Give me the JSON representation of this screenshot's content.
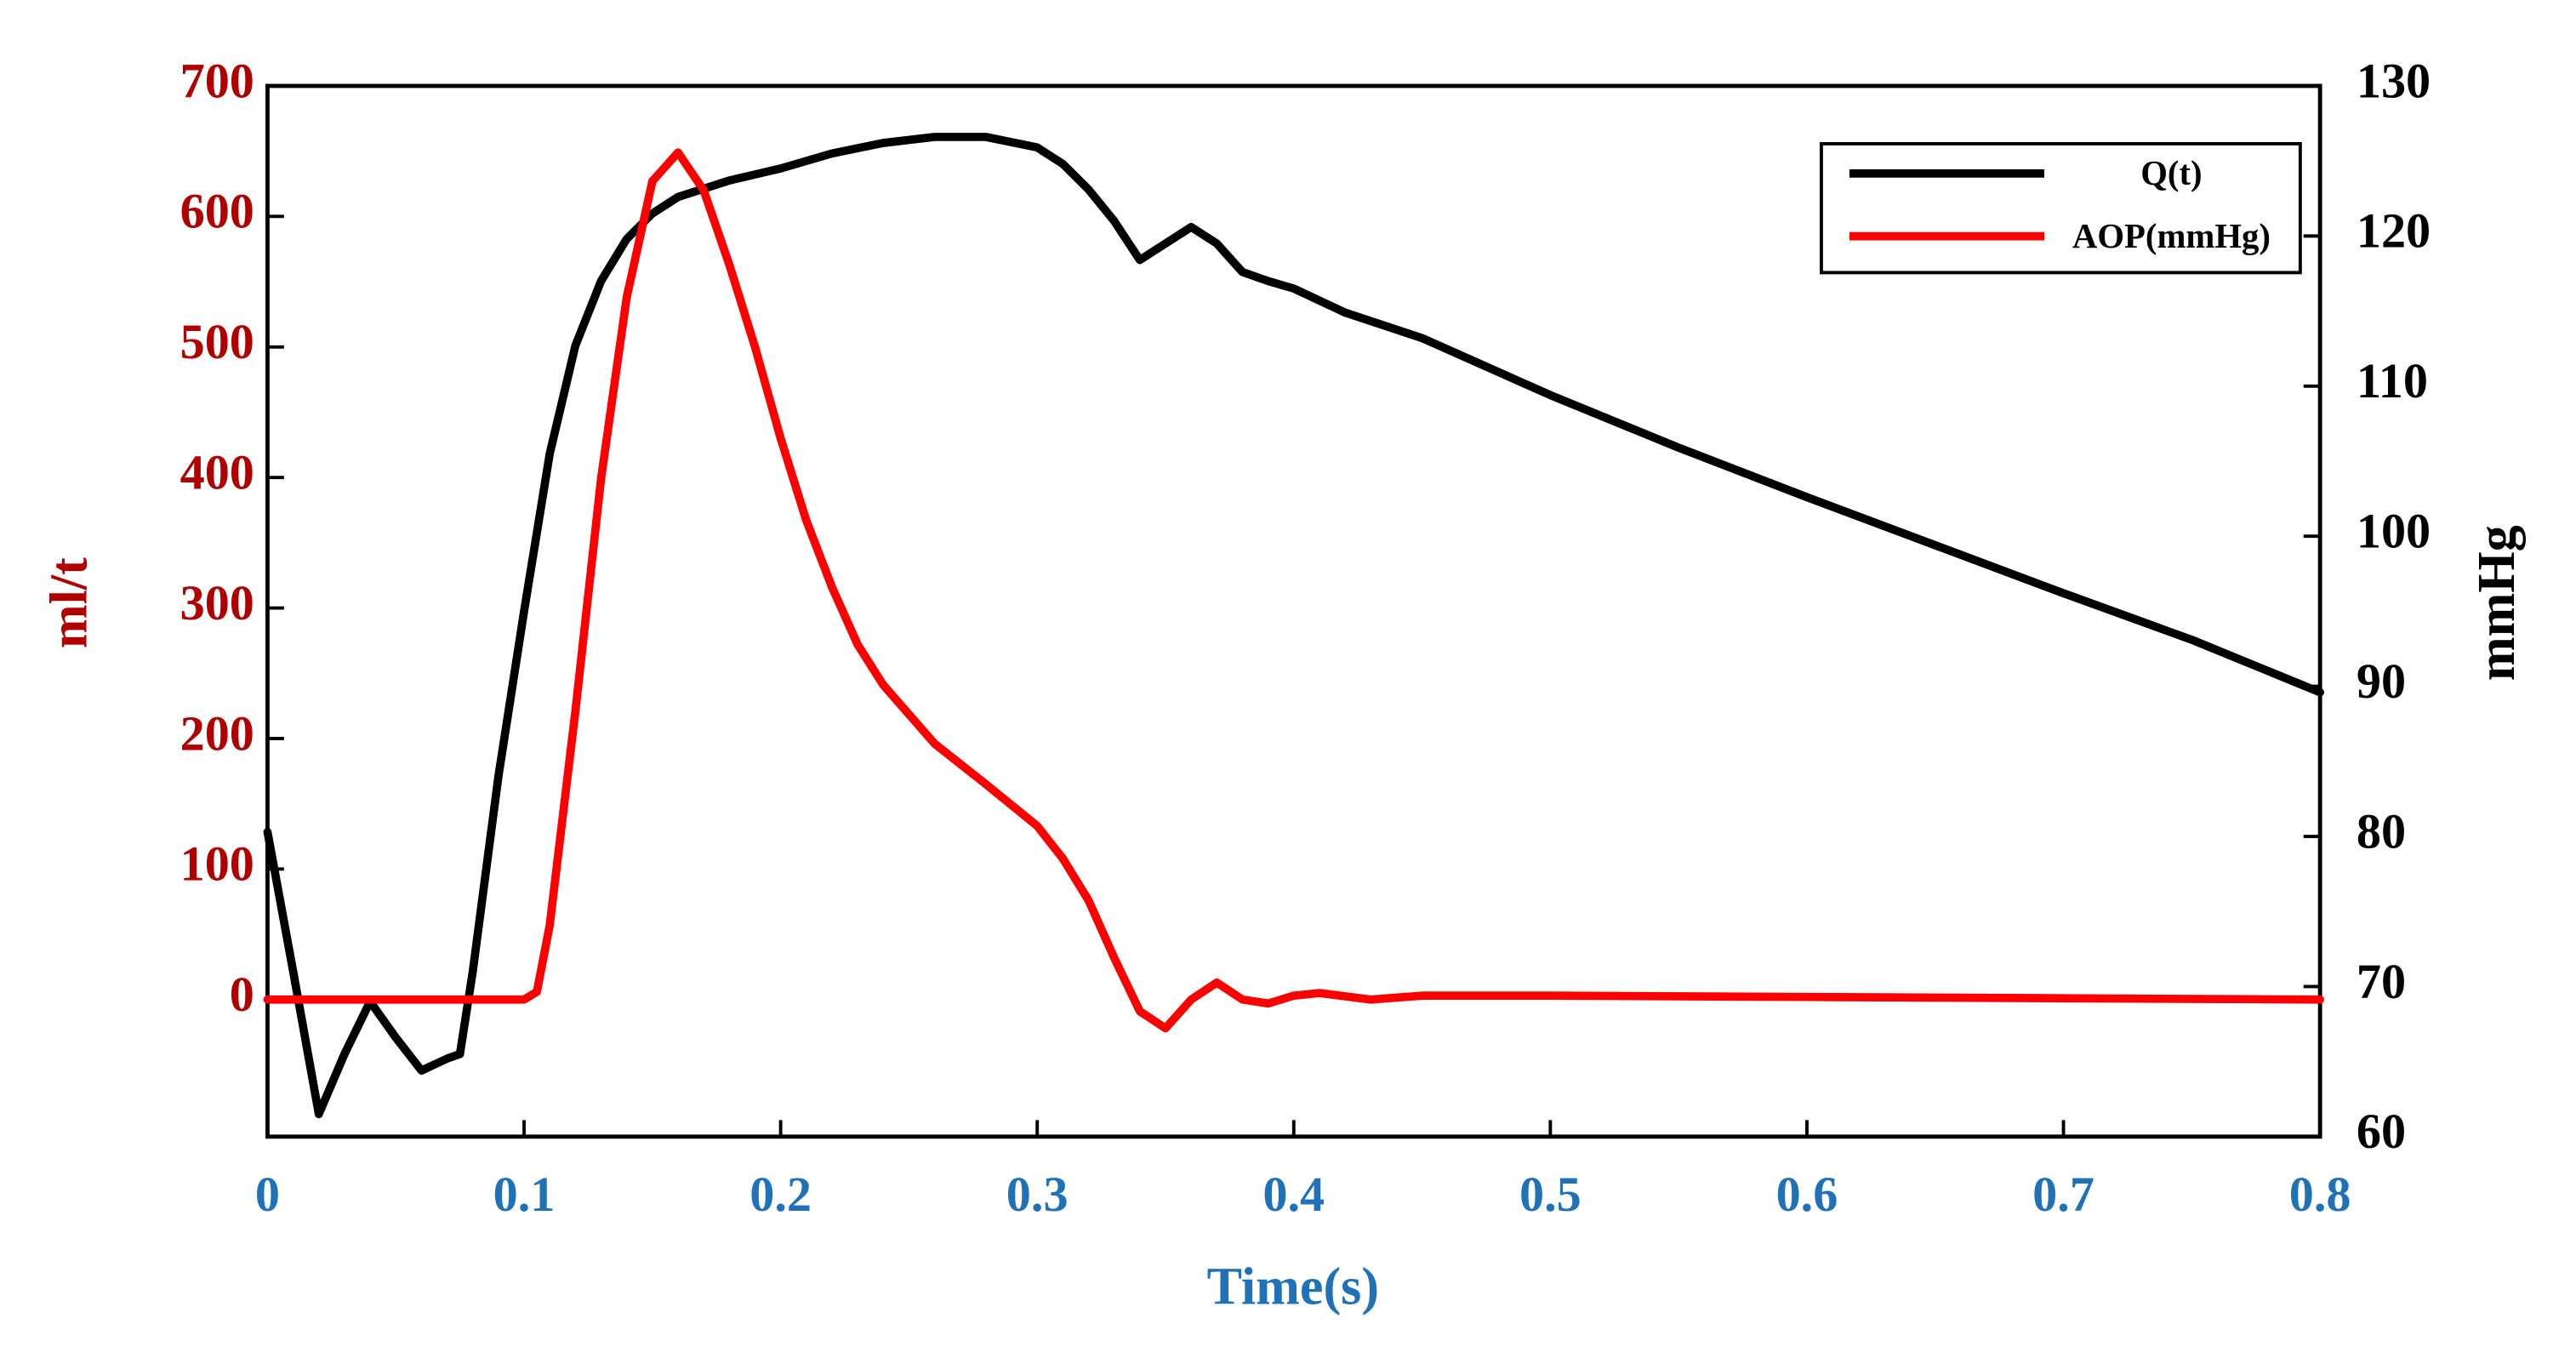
{
  "chart_data": {
    "type": "line",
    "xlabel": "Time(s)",
    "ylabel": "ml/t",
    "y2label": "mmHg",
    "xlim": [
      0,
      0.8
    ],
    "xticks": [
      0,
      0.1,
      0.2,
      0.3,
      0.4,
      0.5,
      0.6,
      0.7,
      0.8
    ],
    "ylim": [
      -105,
      700
    ],
    "yticks": [
      0,
      100,
      200,
      300,
      400,
      500,
      600,
      700
    ],
    "y2lim": [
      60,
      130
    ],
    "y2ticks": [
      60,
      70,
      80,
      90,
      100,
      110,
      120,
      130
    ],
    "y_axis_color": "#b00000",
    "y2_axis_color": "#000000",
    "x_axis_color": "#1f72b8",
    "legend": "upper right",
    "series": [
      {
        "name": "Q(t)",
        "color": "#000000",
        "axis": "y2",
        "x": [
          0,
          0.01,
          0.02,
          0.03,
          0.04,
          0.05,
          0.06,
          0.07,
          0.075,
          0.08,
          0.09,
          0.1,
          0.11,
          0.12,
          0.13,
          0.14,
          0.15,
          0.16,
          0.18,
          0.2,
          0.22,
          0.24,
          0.26,
          0.28,
          0.3,
          0.31,
          0.32,
          0.33,
          0.34,
          0.35,
          0.36,
          0.37,
          0.38,
          0.39,
          0.4,
          0.42,
          0.45,
          0.5,
          0.55,
          0.6,
          0.65,
          0.7,
          0.75,
          0.8
        ],
        "values": [
          80.3,
          71,
          61.5,
          65.5,
          69,
          66.6,
          64.4,
          65.2,
          65.5,
          71,
          84,
          95,
          105.5,
          112.7,
          117,
          119.8,
          121.5,
          122.6,
          123.7,
          124.5,
          125.5,
          126.2,
          126.6,
          126.6,
          125.9,
          124.8,
          123.1,
          121,
          118.4,
          119.5,
          120.6,
          119.5,
          117.6,
          117,
          116.5,
          114.9,
          113.2,
          109.4,
          105.9,
          102.6,
          99.4,
          96.2,
          93.1,
          89.6
        ]
      },
      {
        "name": "AOP(mmHg)",
        "color": "#ff0000",
        "axis": "y",
        "x": [
          0,
          0.1,
          0.105,
          0.11,
          0.12,
          0.13,
          0.14,
          0.15,
          0.16,
          0.17,
          0.18,
          0.19,
          0.2,
          0.21,
          0.22,
          0.23,
          0.24,
          0.26,
          0.28,
          0.3,
          0.31,
          0.32,
          0.33,
          0.34,
          0.35,
          0.36,
          0.37,
          0.38,
          0.39,
          0.4,
          0.41,
          0.43,
          0.45,
          0.5,
          0.6,
          0.7,
          0.8
        ],
        "values": [
          0,
          0,
          6,
          57,
          221,
          399,
          538,
          627,
          649,
          620,
          563,
          500,
          430,
          367,
          316,
          272,
          241,
          196,
          165,
          133,
          108,
          76,
          32,
          -9,
          -22,
          0,
          13,
          0,
          -3,
          3,
          5,
          0,
          3,
          3,
          2,
          1,
          0
        ]
      }
    ]
  }
}
